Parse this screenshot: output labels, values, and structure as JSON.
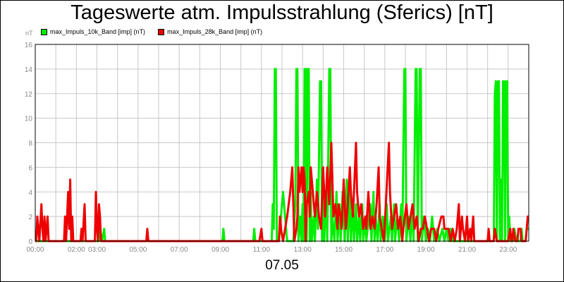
{
  "chart_data": {
    "type": "line",
    "title": "Tageswerte atm. Impulsstrahlung (Sferics) [nT]",
    "ylabel": "nT",
    "xlabel": "07.05",
    "ylim": [
      0,
      16
    ],
    "y_ticks": [
      "0",
      "2",
      "4",
      "6",
      "8",
      "10",
      "12",
      "14",
      "16"
    ],
    "xlim_hours": [
      0,
      24
    ],
    "x_ticks": [
      {
        "hour": 0,
        "label": "00:00"
      },
      {
        "hour": 2,
        "label": "02:00"
      },
      {
        "hour": 3,
        "label": "03:00"
      },
      {
        "hour": 5,
        "label": "05:00"
      },
      {
        "hour": 7,
        "label": "07:00"
      },
      {
        "hour": 9,
        "label": "09:00"
      },
      {
        "hour": 11,
        "label": "11:00"
      },
      {
        "hour": 13,
        "label": "13:00"
      },
      {
        "hour": 15,
        "label": "15:00"
      },
      {
        "hour": 17,
        "label": "17:00"
      },
      {
        "hour": 19,
        "label": "19:00"
      },
      {
        "hour": 21,
        "label": "21:00"
      },
      {
        "hour": 23,
        "label": "23:00"
      }
    ],
    "grid": true,
    "legend_position": "top-left",
    "series": [
      {
        "name": "max_Impuls_10k_Band [imp] (nT)",
        "color": "#00ee00",
        "points": [
          [
            0,
            0
          ],
          [
            3.1,
            0
          ],
          [
            3.15,
            1
          ],
          [
            3.25,
            0
          ],
          [
            3.35,
            1
          ],
          [
            3.4,
            0
          ],
          [
            9.1,
            0
          ],
          [
            9.15,
            1
          ],
          [
            9.2,
            0
          ],
          [
            10.6,
            0
          ],
          [
            10.65,
            1
          ],
          [
            10.7,
            0
          ],
          [
            11.5,
            0
          ],
          [
            11.55,
            3
          ],
          [
            11.6,
            1
          ],
          [
            11.65,
            14
          ],
          [
            11.7,
            14
          ],
          [
            11.75,
            0
          ],
          [
            11.85,
            0
          ],
          [
            11.95,
            2
          ],
          [
            12.05,
            4
          ],
          [
            12.15,
            2
          ],
          [
            12.25,
            0
          ],
          [
            12.55,
            0
          ],
          [
            12.65,
            3
          ],
          [
            12.7,
            14
          ],
          [
            12.75,
            14
          ],
          [
            12.8,
            0
          ],
          [
            12.9,
            2
          ],
          [
            12.95,
            0
          ],
          [
            13.0,
            3
          ],
          [
            13.05,
            0
          ],
          [
            13.1,
            14
          ],
          [
            13.15,
            14
          ],
          [
            13.2,
            0
          ],
          [
            13.25,
            14
          ],
          [
            13.3,
            14
          ],
          [
            13.35,
            0
          ],
          [
            13.4,
            4
          ],
          [
            13.45,
            0
          ],
          [
            13.55,
            2
          ],
          [
            13.6,
            0
          ],
          [
            13.7,
            5
          ],
          [
            13.75,
            1
          ],
          [
            13.85,
            13
          ],
          [
            13.9,
            13
          ],
          [
            13.95,
            0
          ],
          [
            14.0,
            6
          ],
          [
            14.05,
            0
          ],
          [
            14.15,
            4
          ],
          [
            14.2,
            0
          ],
          [
            14.3,
            14
          ],
          [
            14.35,
            14
          ],
          [
            14.4,
            0
          ],
          [
            14.45,
            2
          ],
          [
            14.55,
            0
          ],
          [
            14.65,
            4
          ],
          [
            14.7,
            0
          ],
          [
            14.8,
            3
          ],
          [
            14.85,
            0
          ],
          [
            14.95,
            4
          ],
          [
            15.05,
            0
          ],
          [
            15.15,
            5
          ],
          [
            15.2,
            0
          ],
          [
            15.3,
            4
          ],
          [
            15.35,
            0
          ],
          [
            15.45,
            3
          ],
          [
            15.5,
            0
          ],
          [
            15.6,
            3
          ],
          [
            15.65,
            0
          ],
          [
            15.75,
            2
          ],
          [
            15.8,
            0
          ],
          [
            15.9,
            3
          ],
          [
            15.95,
            0
          ],
          [
            16.05,
            2
          ],
          [
            16.1,
            0
          ],
          [
            16.3,
            3
          ],
          [
            16.35,
            0
          ],
          [
            16.45,
            4
          ],
          [
            16.5,
            0
          ],
          [
            16.55,
            2
          ],
          [
            16.65,
            0
          ],
          [
            16.75,
            3
          ],
          [
            16.8,
            0
          ],
          [
            16.9,
            2
          ],
          [
            17.0,
            0
          ],
          [
            17.1,
            3
          ],
          [
            17.15,
            0
          ],
          [
            17.3,
            2
          ],
          [
            17.35,
            0
          ],
          [
            17.45,
            3
          ],
          [
            17.5,
            0
          ],
          [
            17.6,
            2
          ],
          [
            17.7,
            0
          ],
          [
            17.8,
            3
          ],
          [
            17.85,
            0
          ],
          [
            17.95,
            14
          ],
          [
            18.0,
            14
          ],
          [
            18.05,
            0
          ],
          [
            18.15,
            2
          ],
          [
            18.25,
            0
          ],
          [
            18.35,
            3
          ],
          [
            18.4,
            0
          ],
          [
            18.5,
            14
          ],
          [
            18.55,
            14
          ],
          [
            18.6,
            0
          ],
          [
            18.7,
            14
          ],
          [
            18.75,
            14
          ],
          [
            18.8,
            0
          ],
          [
            18.9,
            2
          ],
          [
            19.0,
            0
          ],
          [
            19.1,
            1
          ],
          [
            19.2,
            0
          ],
          [
            19.3,
            2
          ],
          [
            19.4,
            0
          ],
          [
            19.55,
            1
          ],
          [
            19.65,
            0
          ],
          [
            19.8,
            1
          ],
          [
            19.9,
            0
          ],
          [
            20.0,
            1
          ],
          [
            20.1,
            0
          ],
          [
            20.2,
            1
          ],
          [
            20.3,
            0
          ],
          [
            22.3,
            0
          ],
          [
            22.35,
            12
          ],
          [
            22.4,
            13
          ],
          [
            22.45,
            0
          ],
          [
            22.5,
            13
          ],
          [
            22.55,
            13
          ],
          [
            22.6,
            0
          ],
          [
            22.65,
            5
          ],
          [
            22.7,
            0
          ],
          [
            22.75,
            13
          ],
          [
            22.8,
            13
          ],
          [
            22.85,
            0
          ],
          [
            22.9,
            13
          ],
          [
            22.95,
            13
          ],
          [
            23.0,
            0
          ],
          [
            23.05,
            2
          ],
          [
            23.1,
            0
          ],
          [
            23.25,
            0
          ],
          [
            23.3,
            1
          ],
          [
            23.4,
            0
          ],
          [
            23.6,
            0
          ],
          [
            23.65,
            1
          ],
          [
            23.7,
            0
          ],
          [
            23.85,
            0
          ],
          [
            23.9,
            1
          ],
          [
            24,
            1
          ]
        ]
      },
      {
        "name": "max_Impuls_28k_Band [imp] (nT)",
        "color": "#ee0000",
        "points": [
          [
            0,
            0
          ],
          [
            0.05,
            0
          ],
          [
            0.1,
            2
          ],
          [
            0.2,
            0
          ],
          [
            0.3,
            3
          ],
          [
            0.35,
            1
          ],
          [
            0.4,
            0
          ],
          [
            0.45,
            2
          ],
          [
            0.5,
            0
          ],
          [
            0.55,
            1
          ],
          [
            0.6,
            2
          ],
          [
            0.65,
            0
          ],
          [
            1.4,
            0
          ],
          [
            1.45,
            2
          ],
          [
            1.5,
            0
          ],
          [
            1.6,
            4
          ],
          [
            1.65,
            1
          ],
          [
            1.7,
            5
          ],
          [
            1.75,
            0
          ],
          [
            1.8,
            2
          ],
          [
            1.85,
            0
          ],
          [
            2.2,
            0
          ],
          [
            2.25,
            1
          ],
          [
            2.3,
            0
          ],
          [
            2.4,
            3
          ],
          [
            2.45,
            0
          ],
          [
            2.9,
            0
          ],
          [
            2.95,
            4
          ],
          [
            3.0,
            1
          ],
          [
            3.05,
            0
          ],
          [
            3.1,
            3
          ],
          [
            3.15,
            2
          ],
          [
            3.2,
            0
          ],
          [
            5.4,
            0
          ],
          [
            5.45,
            1
          ],
          [
            5.5,
            0
          ],
          [
            10.9,
            0
          ],
          [
            11.0,
            1
          ],
          [
            11.05,
            0
          ],
          [
            11.85,
            0
          ],
          [
            11.9,
            2
          ],
          [
            11.95,
            1
          ],
          [
            12.05,
            0
          ],
          [
            12.15,
            1
          ],
          [
            12.25,
            2
          ],
          [
            12.4,
            4
          ],
          [
            12.5,
            6
          ],
          [
            12.55,
            3
          ],
          [
            12.6,
            0
          ],
          [
            12.7,
            1
          ],
          [
            12.75,
            2
          ],
          [
            12.8,
            6
          ],
          [
            12.85,
            4
          ],
          [
            12.9,
            5
          ],
          [
            12.95,
            6
          ],
          [
            13.0,
            4
          ],
          [
            13.05,
            6
          ],
          [
            13.1,
            5
          ],
          [
            13.15,
            0
          ],
          [
            13.2,
            3
          ],
          [
            13.3,
            4
          ],
          [
            13.35,
            2
          ],
          [
            13.4,
            6
          ],
          [
            13.5,
            4
          ],
          [
            13.6,
            2
          ],
          [
            13.7,
            4
          ],
          [
            13.8,
            2
          ],
          [
            13.9,
            1
          ],
          [
            14.0,
            6
          ],
          [
            14.05,
            4
          ],
          [
            14.1,
            2
          ],
          [
            14.2,
            6
          ],
          [
            14.3,
            3
          ],
          [
            14.4,
            8
          ],
          [
            14.45,
            5
          ],
          [
            14.5,
            2
          ],
          [
            14.6,
            3
          ],
          [
            14.7,
            1
          ],
          [
            14.75,
            3
          ],
          [
            14.85,
            2
          ],
          [
            14.9,
            1
          ],
          [
            15.0,
            5
          ],
          [
            15.05,
            3
          ],
          [
            15.1,
            1
          ],
          [
            15.2,
            3
          ],
          [
            15.3,
            6
          ],
          [
            15.35,
            4
          ],
          [
            15.45,
            2
          ],
          [
            15.6,
            8
          ],
          [
            15.65,
            4
          ],
          [
            15.75,
            2
          ],
          [
            15.85,
            3
          ],
          [
            15.95,
            1
          ],
          [
            16.05,
            2
          ],
          [
            16.1,
            1
          ],
          [
            16.2,
            4
          ],
          [
            16.3,
            1
          ],
          [
            16.4,
            2
          ],
          [
            16.5,
            1
          ],
          [
            16.6,
            3
          ],
          [
            16.7,
            6
          ],
          [
            16.75,
            2
          ],
          [
            16.85,
            1
          ],
          [
            16.95,
            0
          ],
          [
            17.05,
            3
          ],
          [
            17.2,
            8
          ],
          [
            17.25,
            4
          ],
          [
            17.35,
            1
          ],
          [
            17.45,
            2
          ],
          [
            17.55,
            3
          ],
          [
            17.65,
            1
          ],
          [
            17.75,
            2
          ],
          [
            17.85,
            0
          ],
          [
            17.9,
            1
          ],
          [
            18.05,
            3
          ],
          [
            18.15,
            1
          ],
          [
            18.25,
            2
          ],
          [
            18.35,
            3
          ],
          [
            18.45,
            1
          ],
          [
            18.55,
            2
          ],
          [
            18.65,
            0
          ],
          [
            18.75,
            1
          ],
          [
            18.85,
            1
          ],
          [
            18.95,
            2
          ],
          [
            19.05,
            1
          ],
          [
            19.15,
            0
          ],
          [
            19.25,
            1
          ],
          [
            19.4,
            1
          ],
          [
            19.5,
            0
          ],
          [
            19.6,
            1
          ],
          [
            19.75,
            2
          ],
          [
            19.85,
            2
          ],
          [
            19.9,
            1
          ],
          [
            20.0,
            1
          ],
          [
            20.1,
            1
          ],
          [
            20.2,
            0
          ],
          [
            20.3,
            1
          ],
          [
            20.4,
            0
          ],
          [
            20.5,
            1
          ],
          [
            20.6,
            3
          ],
          [
            20.65,
            0
          ],
          [
            20.75,
            2
          ],
          [
            20.8,
            1
          ],
          [
            20.9,
            0
          ],
          [
            21.0,
            2
          ],
          [
            21.05,
            0
          ],
          [
            21.15,
            1
          ],
          [
            21.2,
            0
          ],
          [
            21.3,
            2
          ],
          [
            21.35,
            0
          ],
          [
            22.0,
            0
          ],
          [
            22.05,
            1
          ],
          [
            22.1,
            0
          ],
          [
            22.3,
            0
          ],
          [
            22.35,
            1
          ],
          [
            22.45,
            0
          ],
          [
            23.0,
            0
          ],
          [
            23.1,
            1
          ],
          [
            23.15,
            0
          ],
          [
            23.2,
            0
          ],
          [
            23.25,
            1
          ],
          [
            23.35,
            0
          ],
          [
            23.45,
            0
          ],
          [
            23.5,
            1
          ],
          [
            23.6,
            1
          ],
          [
            23.65,
            0
          ],
          [
            23.85,
            0
          ],
          [
            23.9,
            1
          ],
          [
            23.95,
            2
          ],
          [
            24,
            2
          ]
        ]
      }
    ]
  }
}
